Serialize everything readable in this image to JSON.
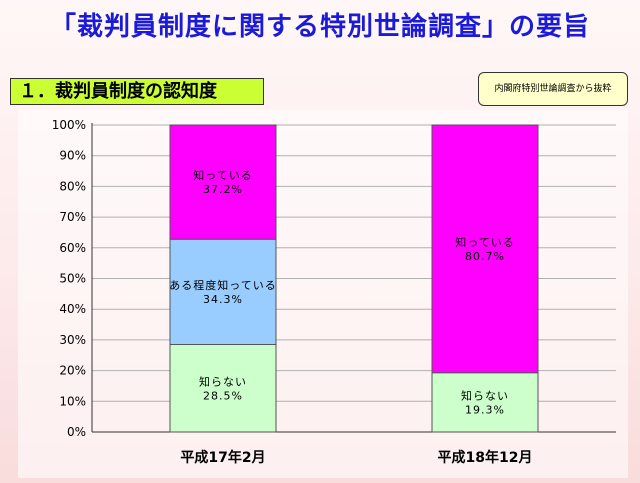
{
  "page": {
    "title": "「裁判員制度に関する特別世論調査」の要旨",
    "section": "１．裁判員制度の認知度",
    "source_note": "内閣府特別世論調査から抜粋"
  },
  "chart_data": {
    "type": "bar",
    "stacked": true,
    "percent": true,
    "categories": [
      "平成17年2月",
      "平成18年12月"
    ],
    "stacks": [
      [
        {
          "label": "知らない",
          "value": 28.5,
          "color": "#ccffcc"
        },
        {
          "label": "ある程度知っている",
          "value": 34.3,
          "color": "#99ccff"
        },
        {
          "label": "知っている",
          "value": 37.2,
          "color": "#ff00ff"
        }
      ],
      [
        {
          "label": "知らない",
          "value": 19.3,
          "color": "#ccffcc"
        },
        {
          "label": "知っている",
          "value": 80.7,
          "color": "#ff00ff"
        }
      ]
    ],
    "ylim": [
      0,
      100
    ],
    "yticks": [
      "0%",
      "10%",
      "20%",
      "30%",
      "40%",
      "50%",
      "60%",
      "70%",
      "80%",
      "90%",
      "100%"
    ],
    "grid": true
  }
}
